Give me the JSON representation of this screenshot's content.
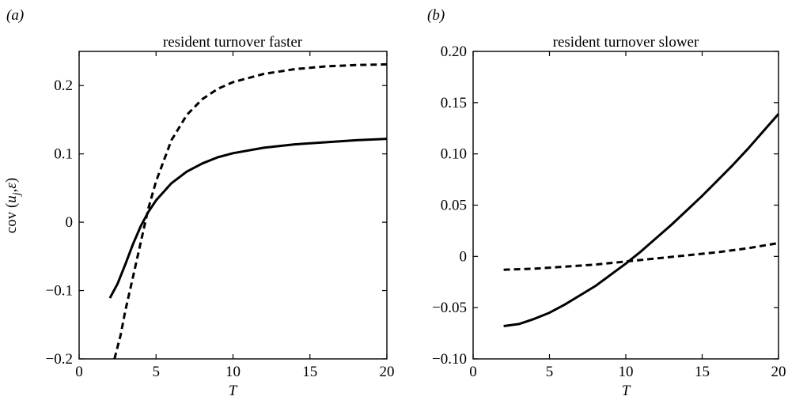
{
  "chart_data": [
    {
      "type": "line",
      "panel_label": "(a)",
      "title": "resident turnover faster",
      "xlabel": "T",
      "ylabel": "cov (u_j, ε)",
      "xlim": [
        0,
        20
      ],
      "ylim": [
        -0.2,
        0.25
      ],
      "xticks": [
        0,
        5,
        10,
        15,
        20
      ],
      "yticks": [
        -0.2,
        -0.1,
        0,
        0.1,
        0.2
      ],
      "xtick_labels": [
        "0",
        "5",
        "10",
        "15",
        "20"
      ],
      "ytick_labels": [
        "−0.2",
        "−0.1",
        "0",
        "0.1",
        "0.2"
      ],
      "grid": false,
      "series": [
        {
          "style": "solid",
          "x": [
            2,
            2.5,
            3,
            3.5,
            4,
            4.5,
            5,
            6,
            7,
            8,
            9,
            10,
            12,
            14,
            16,
            18,
            20
          ],
          "y": [
            -0.111,
            -0.09,
            -0.062,
            -0.032,
            -0.006,
            0.015,
            0.032,
            0.057,
            0.074,
            0.086,
            0.095,
            0.101,
            0.109,
            0.114,
            0.117,
            0.12,
            0.122
          ]
        },
        {
          "style": "dashed",
          "x": [
            2.3,
            2.7,
            3,
            3.5,
            4,
            4.5,
            5,
            6,
            7,
            8,
            9,
            10,
            12,
            14,
            16,
            18,
            20
          ],
          "y": [
            -0.2,
            -0.165,
            -0.13,
            -0.08,
            -0.03,
            0.02,
            0.06,
            0.12,
            0.157,
            0.18,
            0.195,
            0.205,
            0.217,
            0.224,
            0.228,
            0.23,
            0.231
          ]
        }
      ]
    },
    {
      "type": "line",
      "panel_label": "(b)",
      "title": "resident turnover slower",
      "xlabel": "T",
      "ylabel": "",
      "xlim": [
        0,
        20
      ],
      "ylim": [
        -0.1,
        0.2
      ],
      "xticks": [
        0,
        5,
        10,
        15,
        20
      ],
      "yticks": [
        -0.1,
        -0.05,
        0,
        0.05,
        0.1,
        0.15,
        0.2
      ],
      "xtick_labels": [
        "0",
        "5",
        "10",
        "15",
        "20"
      ],
      "ytick_labels": [
        "−0.10",
        "−0.05",
        "0",
        "0.05",
        "0.10",
        "0.15",
        "0.20"
      ],
      "grid": false,
      "series": [
        {
          "style": "solid",
          "x": [
            2,
            3,
            4,
            5,
            6,
            7,
            8,
            9,
            10,
            11,
            12,
            13,
            14,
            15,
            16,
            17,
            18,
            19,
            20
          ],
          "y": [
            -0.068,
            -0.066,
            -0.061,
            -0.055,
            -0.047,
            -0.038,
            -0.029,
            -0.018,
            -0.007,
            0.005,
            0.018,
            0.031,
            0.045,
            0.059,
            0.074,
            0.089,
            0.105,
            0.122,
            0.139
          ]
        },
        {
          "style": "dashed",
          "x": [
            2,
            4,
            6,
            8,
            10,
            12,
            14,
            16,
            18,
            20
          ],
          "y": [
            -0.013,
            -0.012,
            -0.01,
            -0.008,
            -0.005,
            -0.002,
            0.001,
            0.004,
            0.008,
            0.013
          ]
        }
      ]
    }
  ]
}
